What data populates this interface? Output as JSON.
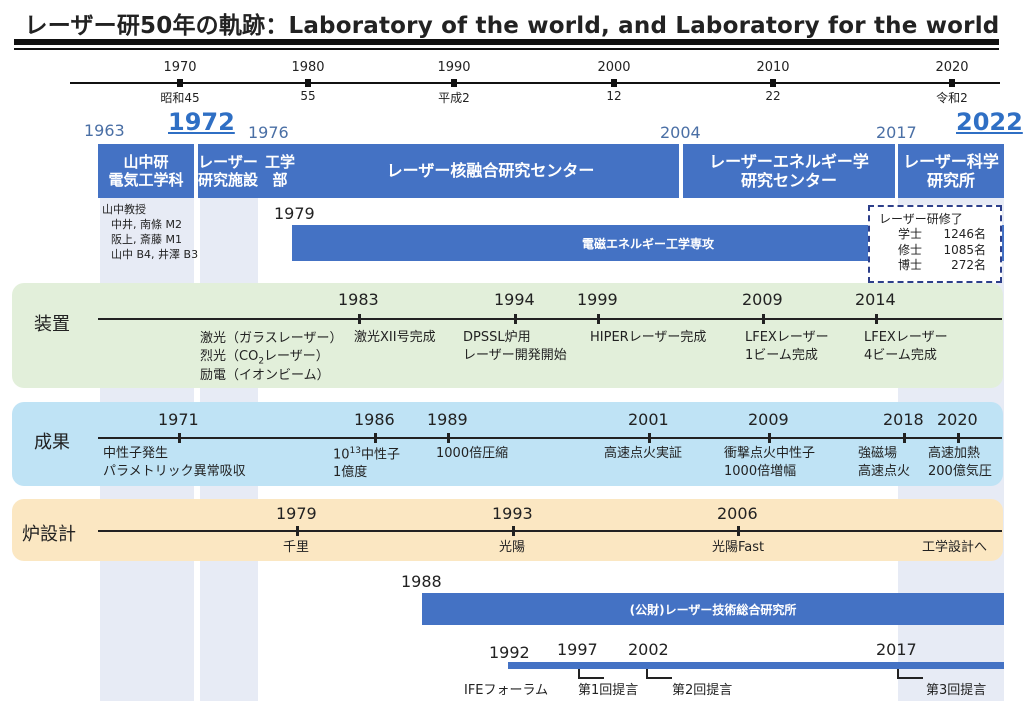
{
  "title": "レーザー研50年の軌跡：Laboratory of the world, and Laboratory for the world",
  "axis": {
    "years": [
      "1970",
      "1980",
      "1990",
      "2000",
      "2010",
      "2020"
    ],
    "eras": [
      "昭和45",
      "55",
      "平成2",
      "12",
      "22",
      "令和2"
    ]
  },
  "milestones": {
    "y1963": "1963",
    "y1972": "1972",
    "y1976": "1976",
    "y2004": "2004",
    "y2017": "2017",
    "y2022": "2022"
  },
  "orgs": {
    "yamanaka": "山中研\n電気工学科",
    "kenkyushisetsu": "レーザー\n研究施設",
    "kougaku": "工学\n部",
    "fusion_center": "レーザー核融合研究センター",
    "energy_center": "レーザーエネルギー学\n研究センター",
    "science_inst": "レーザー科学\n研究所"
  },
  "founding_members": [
    "山中教授",
    "中井, 南條 M2",
    "阪上, 斎藤 M1",
    "山中 B4, 井澤 B3"
  ],
  "major": {
    "year": "1979",
    "label": "電磁エネルギー工学専攻"
  },
  "graduates": {
    "heading": "レーザー研修了",
    "rows": [
      {
        "k": "学士",
        "v": "1246名"
      },
      {
        "k": "修士",
        "v": "1085名"
      },
      {
        "k": "博士",
        "v": "272名"
      }
    ]
  },
  "equipment": {
    "label": "装置",
    "early": [
      "激光（ガラスレーザー）",
      "烈光（CO",
      "レーザー）",
      "励電（イオンビーム）"
    ],
    "co2_sub": "2",
    "events": [
      {
        "year": "1983",
        "text": "激光XII号完成"
      },
      {
        "year": "1994",
        "text": "DPSSL炉用\nレーザー開発開始"
      },
      {
        "year": "1999",
        "text": "HIPERレーザー完成"
      },
      {
        "year": "2009",
        "text": "LFEXレーザー\n1ビーム完成"
      },
      {
        "year": "2014",
        "text": "LFEXレーザー\n4ビーム完成"
      }
    ]
  },
  "results": {
    "label": "成果",
    "events": [
      {
        "year": "1971",
        "text": "中性子発生\nパラメトリック異常吸収"
      },
      {
        "year": "1986",
        "text_pre": "10",
        "text_sup": "13",
        "text_post": "中性子",
        "text2": "1億度"
      },
      {
        "year": "1989",
        "text": "1000倍圧縮"
      },
      {
        "year": "2001",
        "text": "高速点火実証"
      },
      {
        "year": "2009",
        "text": "衝撃点火中性子\n1000倍増幅"
      },
      {
        "year": "2018",
        "text": "強磁場\n高速点火"
      },
      {
        "year": "2020",
        "text": "高速加熱\n200億気圧"
      }
    ]
  },
  "reactor": {
    "label": "炉設計",
    "events": [
      {
        "year": "1979",
        "text": "千里"
      },
      {
        "year": "1993",
        "text": "光陽"
      },
      {
        "year": "2006",
        "text": "光陽Fast"
      },
      {
        "year": "",
        "text": "工学設計へ"
      }
    ]
  },
  "ile": {
    "year": "1988",
    "label": "(公財)レーザー技術総合研究所"
  },
  "forum": {
    "years": [
      "1992",
      "1997",
      "2002",
      "2017"
    ],
    "labels": [
      "IFEフォーラム",
      "第1回提言",
      "第2回提言",
      "第3回提言"
    ]
  },
  "colors": {
    "blue": "#4472c4",
    "green": "#e2efda",
    "lightblue": "#bfe3f5",
    "amber": "#fbe7c2",
    "shade": "#e7ebf5"
  }
}
